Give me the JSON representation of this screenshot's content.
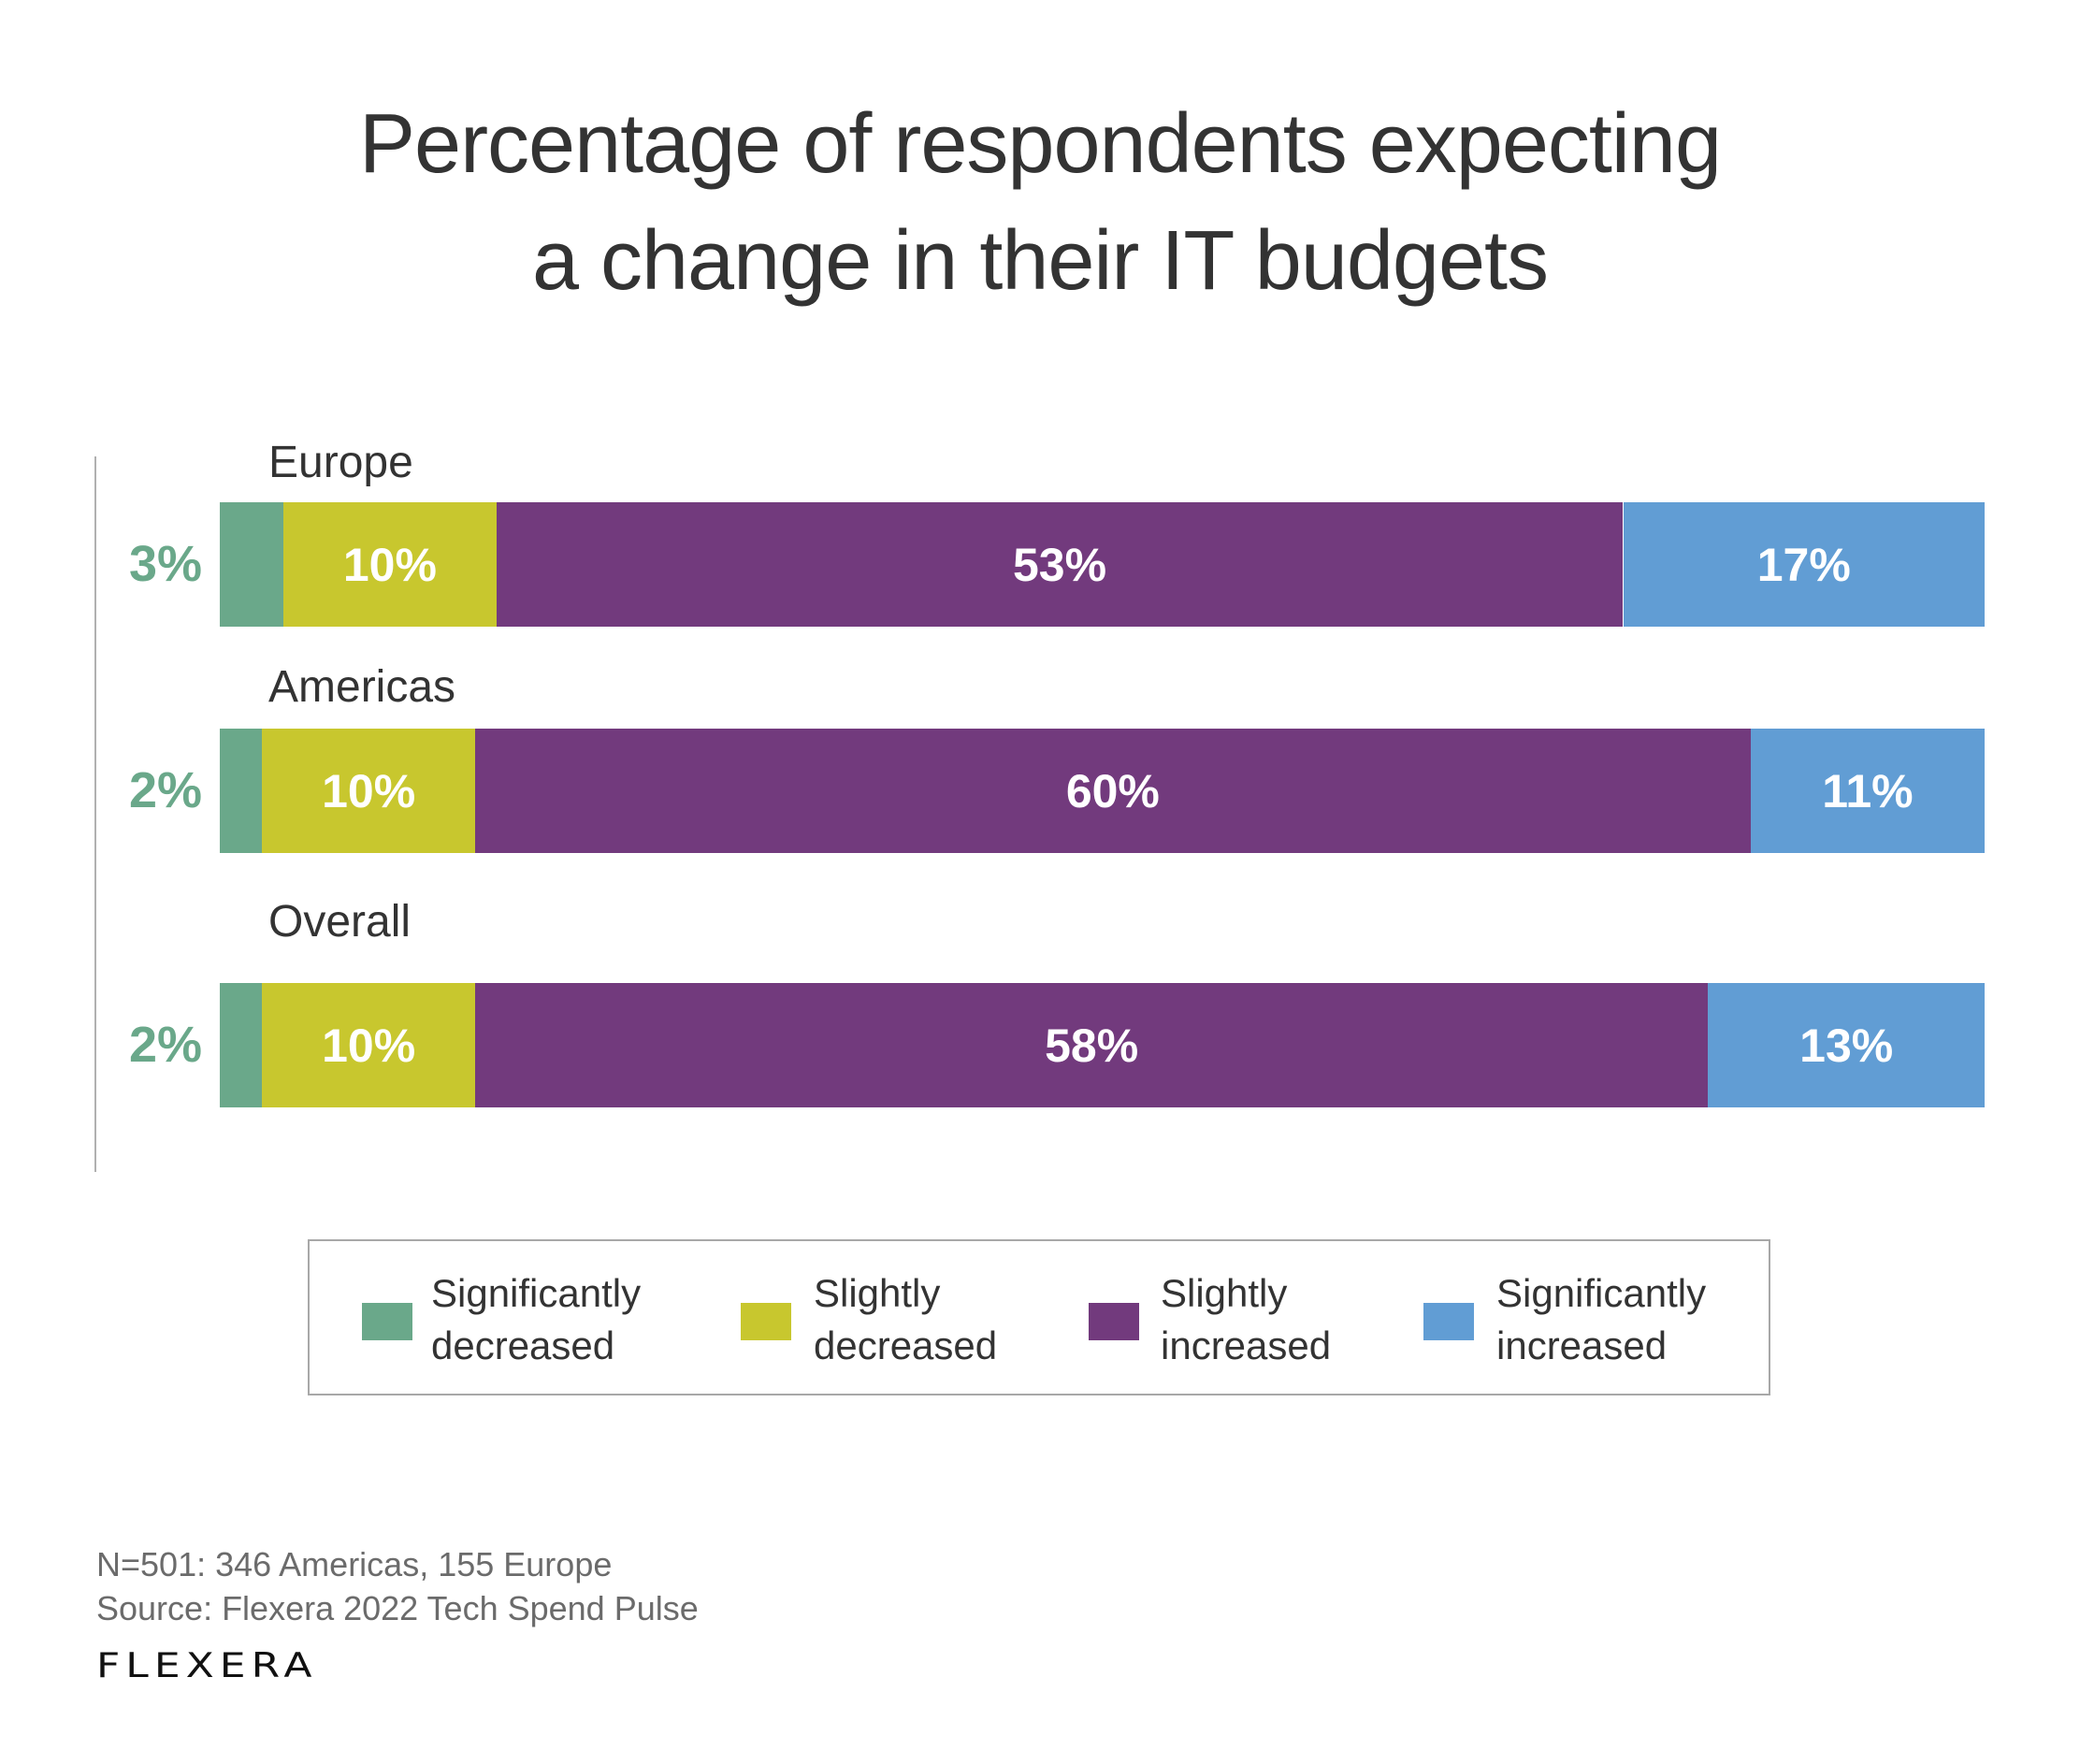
{
  "title": {
    "line1": "Percentage of respondents expecting",
    "line2": "a change in their IT budgets"
  },
  "chart_data": {
    "type": "bar",
    "orientation": "horizontal",
    "stacked": true,
    "normalized_to_full_width": true,
    "title": "Percentage of respondents expecting a change in their IT budgets",
    "categories": [
      "Europe",
      "Americas",
      "Overall"
    ],
    "series": [
      {
        "name": "Significantly decreased",
        "color": "#6aa88a",
        "values": [
          3,
          2,
          2
        ],
        "label_position": "outside-left",
        "label_color": "#6aa88a"
      },
      {
        "name": "Slightly decreased",
        "color": "#c8c72e",
        "values": [
          10,
          10,
          10
        ],
        "label_position": "inside",
        "label_color": "#ffffff"
      },
      {
        "name": "Slightly increased",
        "color": "#723a7d",
        "values": [
          53,
          60,
          58
        ],
        "label_position": "inside",
        "label_color": "#ffffff"
      },
      {
        "name": "Significantly increased",
        "color": "#619dd4",
        "values": [
          17,
          11,
          13
        ],
        "label_position": "inside",
        "label_color": "#ffffff"
      }
    ],
    "unit": "%",
    "xlabel": "",
    "ylabel": "",
    "grid": false,
    "legend": "bottom"
  },
  "legend": {
    "items": [
      {
        "line1": "Significantly",
        "line2": "decreased",
        "color": "#6aa88a"
      },
      {
        "line1": "Slightly",
        "line2": "decreased",
        "color": "#c8c72e"
      },
      {
        "line1": "Slightly",
        "line2": "increased",
        "color": "#723a7d"
      },
      {
        "line1": "Significantly",
        "line2": "increased",
        "color": "#619dd4"
      }
    ]
  },
  "footer": {
    "sample": "N=501: 346 Americas, 155 Europe",
    "source": "Source: Flexera 2022 Tech Spend Pulse",
    "logo_text": "flexera"
  }
}
